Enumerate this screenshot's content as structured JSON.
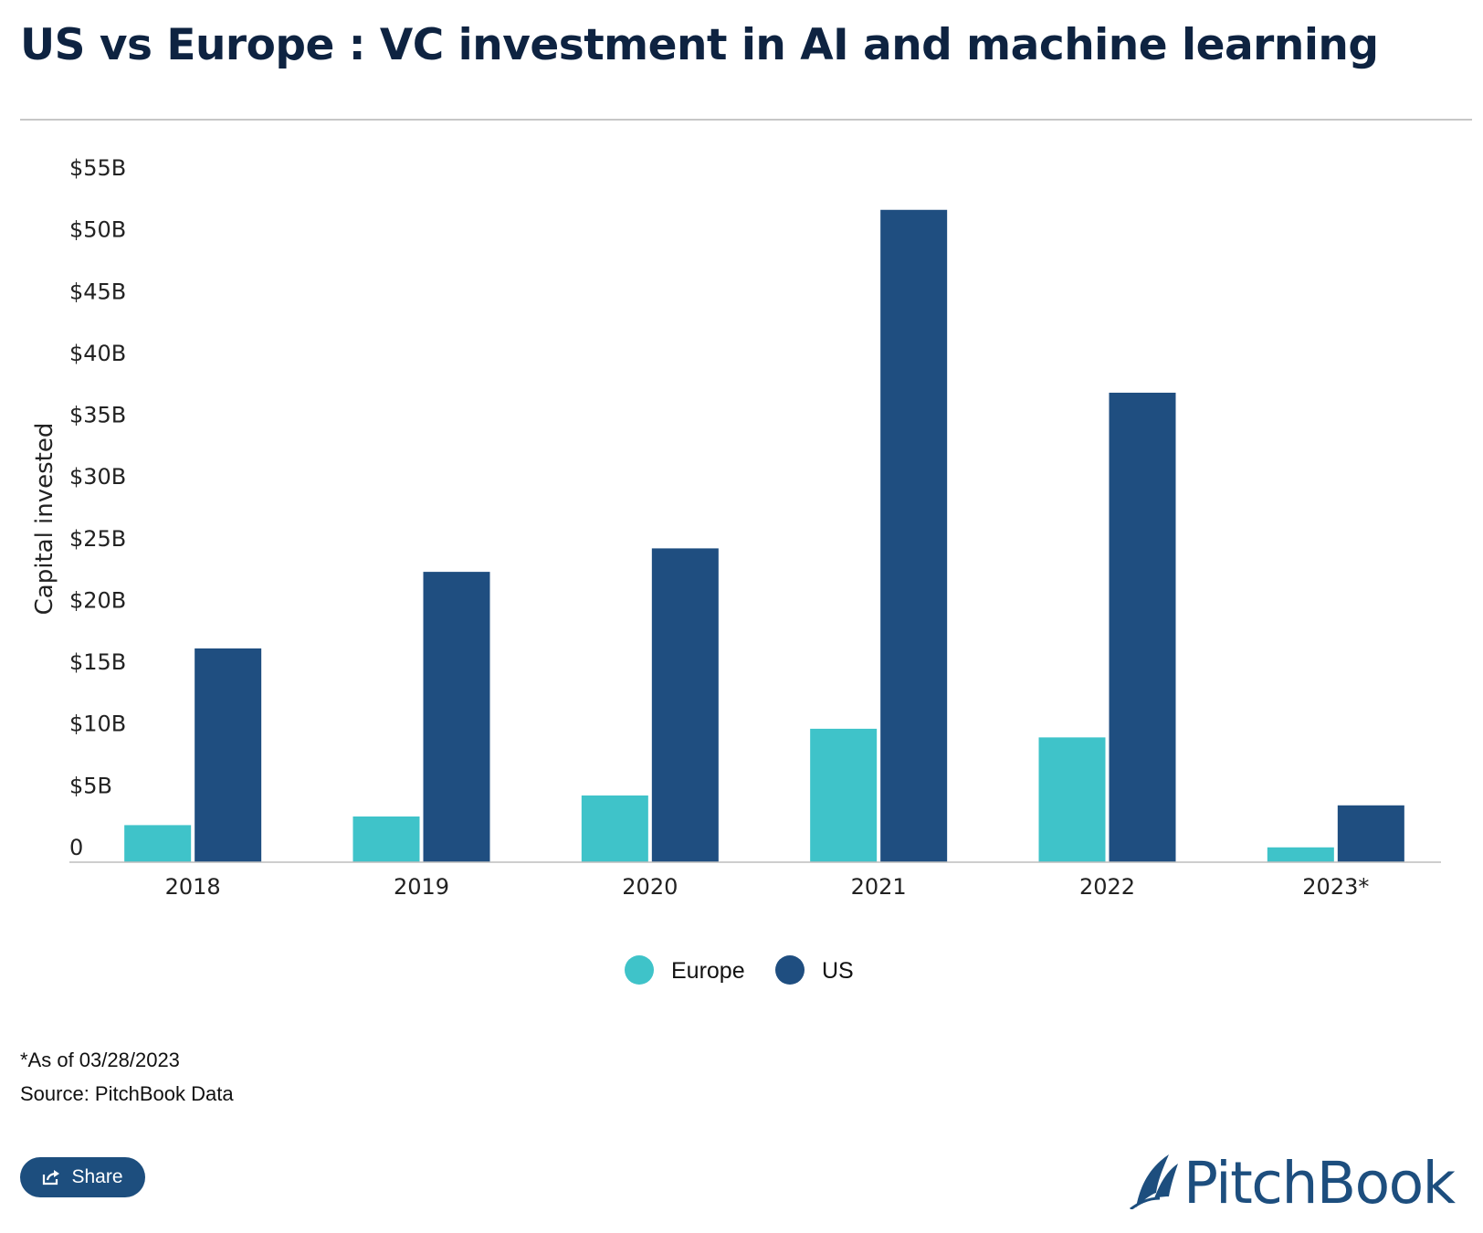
{
  "title": "US vs Europe : VC investment in  AI and machine learning",
  "chart_data": {
    "type": "bar",
    "title": "US vs Europe : VC investment in  AI and machine learning",
    "ylabel": "Capital invested",
    "xlabel": "",
    "categories": [
      "2018",
      "2019",
      "2020",
      "2021",
      "2022",
      "2023*"
    ],
    "series": [
      {
        "name": "Europe",
        "color": "#3fc3c9",
        "values": [
          3.0,
          3.7,
          5.4,
          10.8,
          10.1,
          1.2
        ]
      },
      {
        "name": "US",
        "color": "#1f4e80",
        "values": [
          17.3,
          23.5,
          25.4,
          52.8,
          38.0,
          4.6
        ]
      }
    ],
    "yticks": [
      "0",
      "$5B",
      "$10B",
      "$15B",
      "$20B",
      "$25B",
      "$30B",
      "$35B",
      "$40B",
      "$45B",
      "$50B",
      "$55B"
    ],
    "ylim": [
      0,
      55
    ],
    "grid": false,
    "legend": "bottom-center"
  },
  "notes": {
    "asof": "*As of 03/28/2023",
    "source": "Source: PitchBook Data"
  },
  "share": {
    "label": "Share",
    "icon": "share-icon"
  },
  "logo": {
    "text": "PitchBook",
    "icon": "pitchbook-logo-mark"
  }
}
